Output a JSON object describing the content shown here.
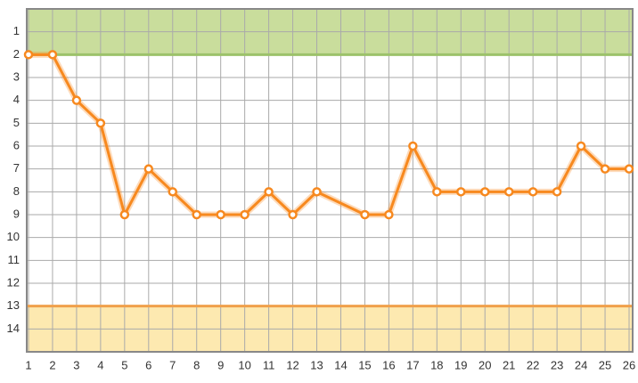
{
  "chart_data": {
    "type": "line",
    "x": [
      1,
      2,
      3,
      4,
      5,
      6,
      7,
      8,
      9,
      10,
      11,
      12,
      13,
      15,
      16,
      17,
      18,
      19,
      20,
      21,
      22,
      23,
      24,
      25,
      26
    ],
    "series": [
      {
        "color": "#f7891f",
        "values": [
          2,
          2,
          4,
          5,
          9,
          7,
          8,
          9,
          9,
          9,
          8,
          9,
          8,
          9,
          9,
          6,
          8,
          8,
          8,
          8,
          8,
          8,
          6,
          7,
          7
        ]
      }
    ],
    "xlim": [
      1,
      26
    ],
    "xticks": [
      1,
      2,
      3,
      4,
      5,
      6,
      7,
      8,
      9,
      10,
      11,
      12,
      13,
      14,
      15,
      16,
      17,
      18,
      19,
      20,
      21,
      22,
      23,
      24,
      25,
      26
    ],
    "ylim": [
      0,
      15
    ],
    "yticks": [
      1,
      2,
      3,
      4,
      5,
      6,
      7,
      8,
      9,
      10,
      11,
      12,
      13,
      14
    ],
    "y_inverted": true,
    "grid": true,
    "bands": [
      {
        "from": 0,
        "to": 2,
        "color": "#c9dd9c",
        "edge": "#9cc26a"
      },
      {
        "from": 13,
        "to": 15,
        "color": "#fde9b0",
        "edge": "#f0a04b"
      }
    ]
  }
}
